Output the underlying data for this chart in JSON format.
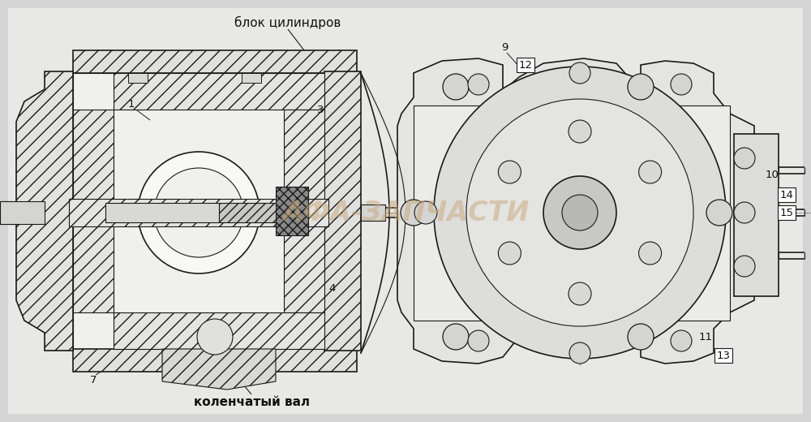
{
  "bg_color": "#d4d4d4",
  "line_color": "#1a1a1a",
  "text_color": "#111111",
  "watermark_color": "#c8a878",
  "watermark_alpha": 0.5,
  "labels": {
    "blok_tsilindrov": "блок цилиндров",
    "kolenchatyy_val": "коленчатый вал",
    "watermark": "АФА-ЗАПЧАСТИ"
  },
  "dpi": 100,
  "fig_width": 10.0,
  "fig_height": 5.2
}
